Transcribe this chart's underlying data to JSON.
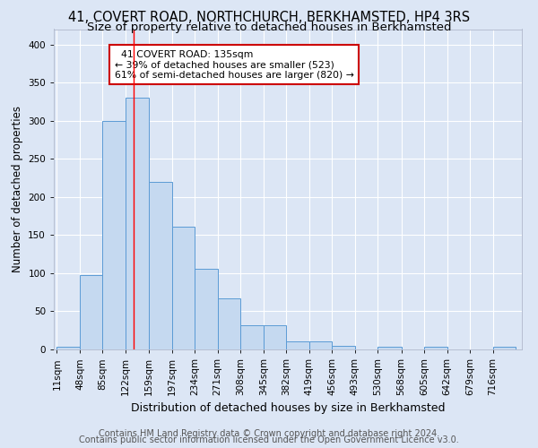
{
  "title1": "41, COVERT ROAD, NORTHCHURCH, BERKHAMSTED, HP4 3RS",
  "title2": "Size of property relative to detached houses in Berkhamsted",
  "xlabel": "Distribution of detached houses by size in Berkhamsted",
  "ylabel": "Number of detached properties",
  "footer1": "Contains HM Land Registry data © Crown copyright and database right 2024.",
  "footer2": "Contains public sector information licensed under the Open Government Licence v3.0.",
  "annotation_line1": "41 COVERT ROAD: 135sqm",
  "annotation_line2": "← 39% of detached houses are smaller (523)",
  "annotation_line3": "61% of semi-detached houses are larger (820) →",
  "bar_edges": [
    11,
    48,
    85,
    122,
    159,
    197,
    234,
    271,
    308,
    345,
    382,
    419,
    456,
    493,
    530,
    568,
    605,
    642,
    679,
    716,
    753
  ],
  "bar_heights": [
    4,
    98,
    299,
    330,
    220,
    161,
    106,
    67,
    32,
    32,
    11,
    10,
    5,
    0,
    3,
    0,
    3,
    0,
    0,
    4
  ],
  "bar_color": "#c5d9f0",
  "bar_edge_color": "#5b9bd5",
  "red_line_x": 135,
  "ylim": [
    0,
    420
  ],
  "yticks": [
    0,
    50,
    100,
    150,
    200,
    250,
    300,
    350,
    400
  ],
  "background_color": "#dce6f5",
  "plot_background": "#dce6f5",
  "grid_color": "#ffffff",
  "annotation_box_color": "#ffffff",
  "annotation_border_color": "#cc0000",
  "title1_fontsize": 10.5,
  "title2_fontsize": 9.5,
  "xlabel_fontsize": 9,
  "ylabel_fontsize": 8.5,
  "tick_fontsize": 7.5,
  "footer_fontsize": 7
}
